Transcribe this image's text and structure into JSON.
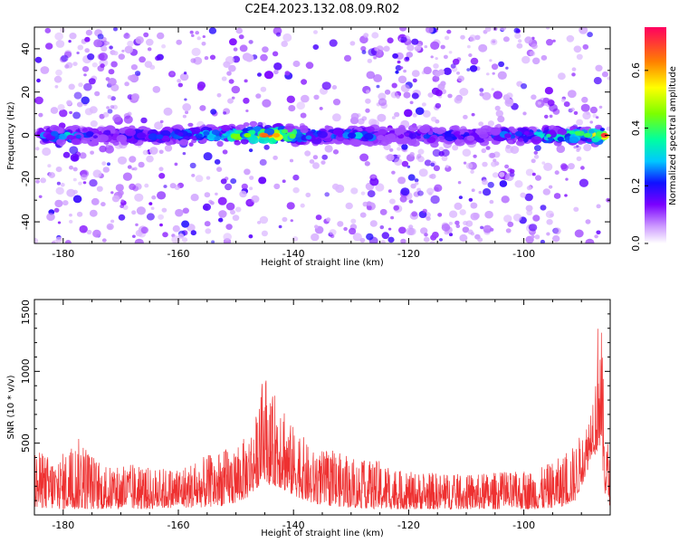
{
  "title": "C2E4.2023.132.08.09.R02",
  "chart_data": [
    {
      "type": "heatmap",
      "xlabel": "Height of straight line (km)",
      "ylabel": "Frequency (Hz)",
      "xlim": [
        -185,
        -85
      ],
      "ylim": [
        -50,
        50
      ],
      "xticks": [
        -180,
        -160,
        -140,
        -120,
        -100
      ],
      "yticks": [
        -40,
        -20,
        0,
        20,
        40
      ],
      "colorbar": {
        "label": "Normalized spectral amplitude",
        "range": [
          0.0,
          0.75
        ],
        "ticks": [
          0.0,
          0.2,
          0.4,
          0.6
        ]
      },
      "band": {
        "center_frequency": 0,
        "peak_x": [
          -184,
          -179,
          -174,
          -168,
          -163,
          -158,
          -153,
          -148,
          -145,
          -143,
          -138,
          -133,
          -128,
          -122,
          -118,
          -112,
          -106,
          -100,
          -95,
          -89,
          -86
        ],
        "peak_amplitude": [
          0.25,
          0.3,
          0.15,
          0.22,
          0.25,
          0.28,
          0.35,
          0.45,
          0.65,
          0.6,
          0.35,
          0.22,
          0.3,
          0.12,
          0.22,
          0.22,
          0.18,
          0.3,
          0.35,
          0.4,
          0.7
        ]
      }
    },
    {
      "type": "line",
      "xlabel": "Height of straight line (km)",
      "ylabel": "SNR (10 * v/v)",
      "xlim": [
        -185,
        -85
      ],
      "ylim": [
        0,
        1500
      ],
      "xticks": [
        -180,
        -160,
        -140,
        -120,
        -100
      ],
      "yticks": [
        500,
        1000,
        1500
      ],
      "series": [
        {
          "color": "#ee3030",
          "x": [
            -185,
            -181,
            -177,
            -173,
            -169,
            -165,
            -161,
            -157,
            -153,
            -150,
            -148,
            -146,
            -145,
            -144,
            -143,
            -142,
            -141,
            -139,
            -137,
            -133,
            -129,
            -125,
            -121,
            -117,
            -113,
            -109,
            -105,
            -101,
            -97,
            -93,
            -91,
            -89,
            -88,
            -87.5,
            -87,
            -86.5,
            -86,
            -85
          ],
          "y_envelope_high": [
            450,
            400,
            550,
            330,
            360,
            330,
            330,
            380,
            450,
            480,
            560,
            750,
            1050,
            800,
            870,
            960,
            650,
            600,
            450,
            450,
            380,
            380,
            300,
            300,
            290,
            280,
            300,
            300,
            330,
            420,
            500,
            660,
            900,
            1050,
            1500,
            1300,
            700,
            400
          ],
          "y_envelope_low": [
            50,
            40,
            40,
            40,
            40,
            40,
            50,
            50,
            60,
            80,
            120,
            200,
            250,
            200,
            200,
            180,
            150,
            120,
            80,
            60,
            50,
            40,
            40,
            40,
            40,
            40,
            40,
            40,
            40,
            60,
            100,
            300,
            450,
            400,
            500,
            400,
            150,
            60
          ]
        }
      ]
    }
  ]
}
